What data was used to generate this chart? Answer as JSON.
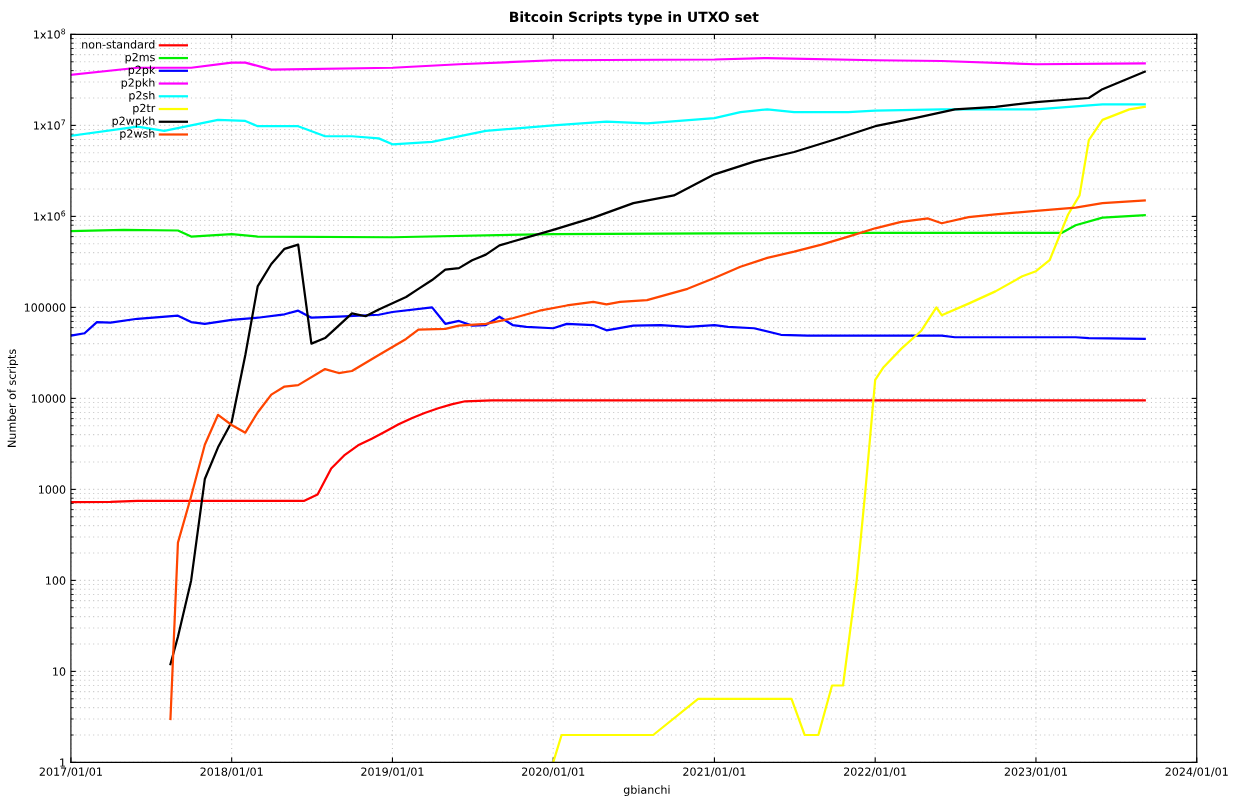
{
  "chart_data": {
    "type": "line",
    "title": "Bitcoin Scripts type in UTXO set",
    "ylabel": "Number of scripts",
    "annotations": [
      "gbianchi"
    ],
    "log": "y",
    "grid": true,
    "legend": "top left",
    "line_style": "solid",
    "marker": "none",
    "xlim": [
      "2017-01-01",
      "2024-01-01"
    ],
    "xticks": [
      {
        "value": "2017-01-01",
        "label": "2017/01/01"
      },
      {
        "value": "2018-01-01",
        "label": "2018/01/01"
      },
      {
        "value": "2019-01-01",
        "label": "2019/01/01"
      },
      {
        "value": "2020-01-01",
        "label": "2020/01/01"
      },
      {
        "value": "2021-01-01",
        "label": "2021/01/01"
      },
      {
        "value": "2022-01-01",
        "label": "2022/01/01"
      },
      {
        "value": "2023-01-01",
        "label": "2023/01/01"
      },
      {
        "value": "2024-01-01",
        "label": "2024/01/01"
      }
    ],
    "ylim": [
      1,
      100000000
    ],
    "yticks": [
      1,
      10,
      100,
      1000,
      10000,
      100000,
      {
        "value": 1000000,
        "label": "1x10$^{6}$"
      },
      {
        "value": 10000000,
        "label": "1x10$^{7}$"
      },
      {
        "value": 100000000,
        "label": "1x10$^{8}$"
      }
    ],
    "series": [
      {
        "name": "non-standard",
        "color": "#ff0000",
        "x": [
          "2017-01-01",
          "2017-04-01",
          "2017-06-01",
          "2018-01-01",
          "2018-06-15",
          "2018-07-15",
          "2018-08-15",
          "2018-09-15",
          "2018-10-15",
          "2018-11-15",
          "2018-12-15",
          "2019-01-15",
          "2019-02-15",
          "2019-03-15",
          "2019-04-15",
          "2019-05-15",
          "2019-06-15",
          "2019-08-15",
          "2023-09-05"
        ],
        "values": [
          725,
          730,
          750,
          750,
          750,
          880,
          1700,
          2400,
          3050,
          3600,
          4300,
          5200,
          6100,
          6900,
          7800,
          8600,
          9300,
          9500,
          9500
        ]
      },
      {
        "name": "p2ms",
        "color": "#00ee00",
        "x": [
          "2017-01-01",
          "2017-05-01",
          "2017-09-01",
          "2017-10-01",
          "2018-01-01",
          "2018-03-01",
          "2019-01-01",
          "2020-01-01",
          "2021-01-01",
          "2022-01-01",
          "2023-03-01",
          "2023-04-01",
          "2023-06-01",
          "2023-09-05"
        ],
        "values": [
          690000,
          710000,
          700000,
          600000,
          640000,
          600000,
          590000,
          640000,
          650000,
          660000,
          660000,
          800000,
          970000,
          1030000
        ]
      },
      {
        "name": "p2pk",
        "color": "#0000ff",
        "x": [
          "2017-01-01",
          "2017-02-01",
          "2017-03-01",
          "2017-04-01",
          "2017-06-01",
          "2017-09-01",
          "2017-10-01",
          "2017-11-01",
          "2018-01-01",
          "2018-03-01",
          "2018-05-01",
          "2018-06-01",
          "2018-07-01",
          "2018-09-01",
          "2018-12-01",
          "2019-01-01",
          "2019-04-01",
          "2019-05-01",
          "2019-06-01",
          "2019-07-01",
          "2019-08-01",
          "2019-09-01",
          "2019-10-01",
          "2019-11-01",
          "2020-01-01",
          "2020-02-01",
          "2020-04-01",
          "2020-05-01",
          "2020-07-01",
          "2020-09-01",
          "2020-11-01",
          "2021-01-01",
          "2021-02-01",
          "2021-04-01",
          "2021-06-01",
          "2021-08-01",
          "2022-06-01",
          "2022-07-01",
          "2023-04-01",
          "2023-05-01",
          "2023-09-05"
        ],
        "values": [
          49000,
          52000,
          69000,
          68000,
          75000,
          81000,
          69000,
          66000,
          73000,
          77000,
          84000,
          92000,
          77000,
          79000,
          83000,
          89000,
          100000,
          66000,
          71000,
          63000,
          64000,
          79000,
          64000,
          61000,
          59000,
          66000,
          64000,
          56000,
          63000,
          64000,
          61000,
          64000,
          61000,
          59000,
          50000,
          49000,
          49000,
          47000,
          47000,
          46000,
          45000
        ]
      },
      {
        "name": "p2pkh",
        "color": "#ff00ff",
        "x": [
          "2017-01-01",
          "2017-06-01",
          "2017-10-01",
          "2018-01-01",
          "2018-02-01",
          "2018-04-01",
          "2019-01-01",
          "2019-06-01",
          "2020-01-01",
          "2021-01-01",
          "2021-05-01",
          "2022-01-01",
          "2022-06-01",
          "2023-01-01",
          "2023-09-05"
        ],
        "values": [
          36000000,
          43000000,
          43000000,
          49000000,
          49000000,
          41000000,
          43000000,
          47000000,
          52000000,
          53000000,
          55000000,
          52000000,
          51000000,
          47000000,
          48000000
        ]
      },
      {
        "name": "p2sh",
        "color": "#00ffff",
        "x": [
          "2017-01-01",
          "2017-06-01",
          "2017-08-01",
          "2017-12-01",
          "2018-02-01",
          "2018-03-01",
          "2018-06-01",
          "2018-08-01",
          "2018-10-01",
          "2018-12-01",
          "2019-01-01",
          "2019-04-01",
          "2019-08-01",
          "2020-01-01",
          "2020-05-01",
          "2020-08-01",
          "2021-01-01",
          "2021-03-01",
          "2021-05-01",
          "2021-07-01",
          "2021-11-01",
          "2022-01-01",
          "2022-06-01",
          "2023-01-01",
          "2023-06-01",
          "2023-09-05"
        ],
        "values": [
          7700000,
          9700000,
          8700000,
          11500000,
          11200000,
          9800000,
          9800000,
          7600000,
          7600000,
          7200000,
          6200000,
          6600000,
          8700000,
          10000000,
          11000000,
          10500000,
          12000000,
          14000000,
          15000000,
          14000000,
          14000000,
          14500000,
          15000000,
          15000000,
          17000000,
          17000000
        ]
      },
      {
        "name": "p2tr",
        "color": "#ffff00",
        "x": [
          "2020-01-01",
          "2020-01-20",
          "2020-08-15",
          "2020-11-25",
          "2021-06-25",
          "2021-07-25",
          "2021-08-25",
          "2021-09-25",
          "2021-10-20",
          "2021-11-20",
          "2021-12-10",
          "2022-01-01",
          "2022-01-20",
          "2022-03-01",
          "2022-04-15",
          "2022-05-20",
          "2022-06-01",
          "2022-08-01",
          "2022-10-01",
          "2022-12-01",
          "2023-01-01",
          "2023-02-01",
          "2023-03-15",
          "2023-04-10",
          "2023-05-01",
          "2023-06-01",
          "2023-08-01",
          "2023-09-05"
        ],
        "values": [
          1,
          2,
          2,
          5,
          5,
          2,
          2,
          7,
          7,
          100,
          1000,
          16000,
          22000,
          35000,
          55000,
          100000,
          82000,
          110000,
          150000,
          220000,
          250000,
          330000,
          1050000,
          1700000,
          6900000,
          11500000,
          15000000,
          16000000
        ]
      },
      {
        "name": "p2wpkh",
        "color": "#000000",
        "x": [
          "2017-08-15",
          "2017-09-01",
          "2017-10-01",
          "2017-11-01",
          "2017-12-01",
          "2018-01-01",
          "2018-02-01",
          "2018-03-01",
          "2018-04-01",
          "2018-05-01",
          "2018-06-01",
          "2018-07-01",
          "2018-08-01",
          "2018-09-01",
          "2018-10-01",
          "2018-11-01",
          "2018-12-01",
          "2019-02-01",
          "2019-03-01",
          "2019-04-01",
          "2019-05-01",
          "2019-06-01",
          "2019-07-01",
          "2019-08-01",
          "2019-09-01",
          "2020-01-01",
          "2020-04-01",
          "2020-07-01",
          "2020-10-01",
          "2021-01-01",
          "2021-04-01",
          "2021-07-01",
          "2021-10-01",
          "2022-01-01",
          "2022-04-01",
          "2022-07-01",
          "2022-10-01",
          "2023-01-01",
          "2023-05-01",
          "2023-06-01",
          "2023-09-05"
        ],
        "values": [
          12,
          24,
          100,
          1300,
          2900,
          5500,
          30000,
          170000,
          300000,
          440000,
          490000,
          40000,
          46000,
          63000,
          86000,
          80000,
          95000,
          130000,
          160000,
          200000,
          260000,
          270000,
          330000,
          380000,
          480000,
          710000,
          970000,
          1400000,
          1700000,
          2900000,
          4000000,
          5100000,
          7000000,
          9800000,
          12000000,
          15000000,
          16000000,
          18000000,
          20000000,
          25000000,
          39000000
        ]
      },
      {
        "name": "p2wsh",
        "color": "#ff4500",
        "x": [
          "2017-08-15",
          "2017-09-01",
          "2017-10-01",
          "2017-11-01",
          "2017-12-01",
          "2018-01-01",
          "2018-02-01",
          "2018-03-01",
          "2018-04-01",
          "2018-05-01",
          "2018-06-01",
          "2018-08-01",
          "2018-09-01",
          "2018-10-01",
          "2018-12-01",
          "2019-02-01",
          "2019-03-01",
          "2019-05-01",
          "2019-06-01",
          "2019-08-01",
          "2019-10-01",
          "2019-12-01",
          "2020-02-01",
          "2020-04-01",
          "2020-05-01",
          "2020-06-01",
          "2020-08-01",
          "2020-11-01",
          "2021-01-01",
          "2021-03-01",
          "2021-05-01",
          "2021-07-01",
          "2021-09-01",
          "2021-11-01",
          "2022-01-01",
          "2022-03-01",
          "2022-05-01",
          "2022-06-01",
          "2022-08-01",
          "2022-10-01",
          "2023-01-01",
          "2023-04-01",
          "2023-06-01",
          "2023-09-05"
        ],
        "values": [
          3,
          260,
          840,
          3100,
          6600,
          5100,
          4200,
          7000,
          11000,
          13500,
          14000,
          21000,
          19000,
          20000,
          30000,
          45000,
          57000,
          58000,
          63000,
          66000,
          76000,
          92000,
          105000,
          115000,
          108000,
          115000,
          120000,
          160000,
          210000,
          280000,
          350000,
          410000,
          490000,
          600000,
          740000,
          870000,
          950000,
          840000,
          980000,
          1050000,
          1150000,
          1250000,
          1400000,
          1500000
        ]
      }
    ]
  }
}
